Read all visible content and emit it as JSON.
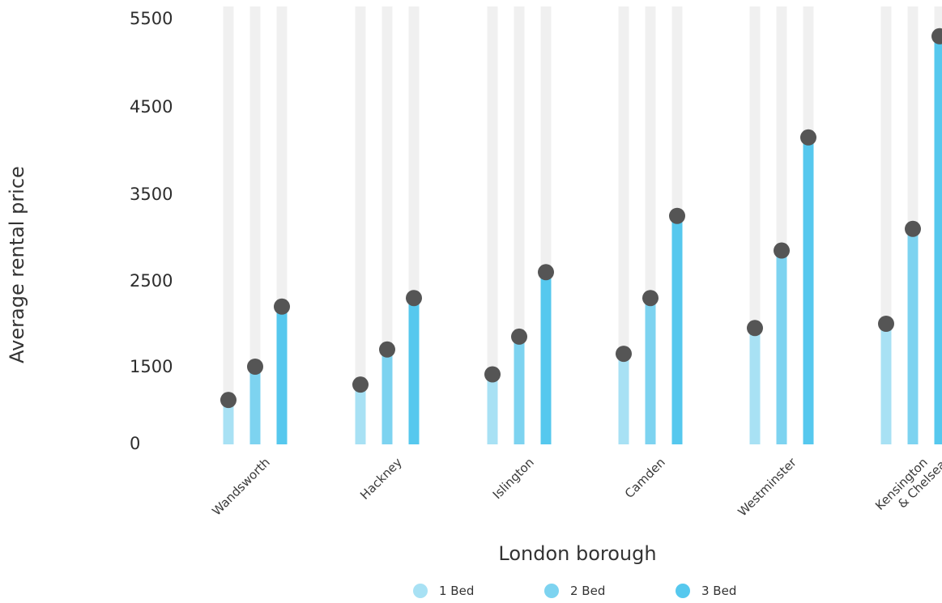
{
  "chart_data": {
    "type": "lollipop-bar",
    "categories": [
      "Wandsworth",
      "Hackney",
      "Islington",
      "Camden",
      "Westminster",
      "Kensington\n& Chelsea"
    ],
    "series": [
      {
        "name": "1 Bed",
        "color": "#a8e1f4",
        "values": [
          850,
          1150,
          1350,
          1650,
          1950,
          2000
        ]
      },
      {
        "name": "2 Bed",
        "color": "#7dd3f0",
        "values": [
          1500,
          1700,
          1850,
          2300,
          2850,
          3100
        ]
      },
      {
        "name": "3 Bed",
        "color": "#56c8ee",
        "values": [
          2200,
          2300,
          2600,
          3250,
          4150,
          5300
        ]
      }
    ],
    "yticks": [
      0,
      1500,
      2500,
      3500,
      4500,
      5500
    ],
    "ylim": [
      0,
      5500
    ],
    "xlabel": "London borough",
    "ylabel": "Average rental price",
    "track_color": "#f0f0f0",
    "marker_color": "#555555",
    "legend_position": "bottom-center"
  }
}
